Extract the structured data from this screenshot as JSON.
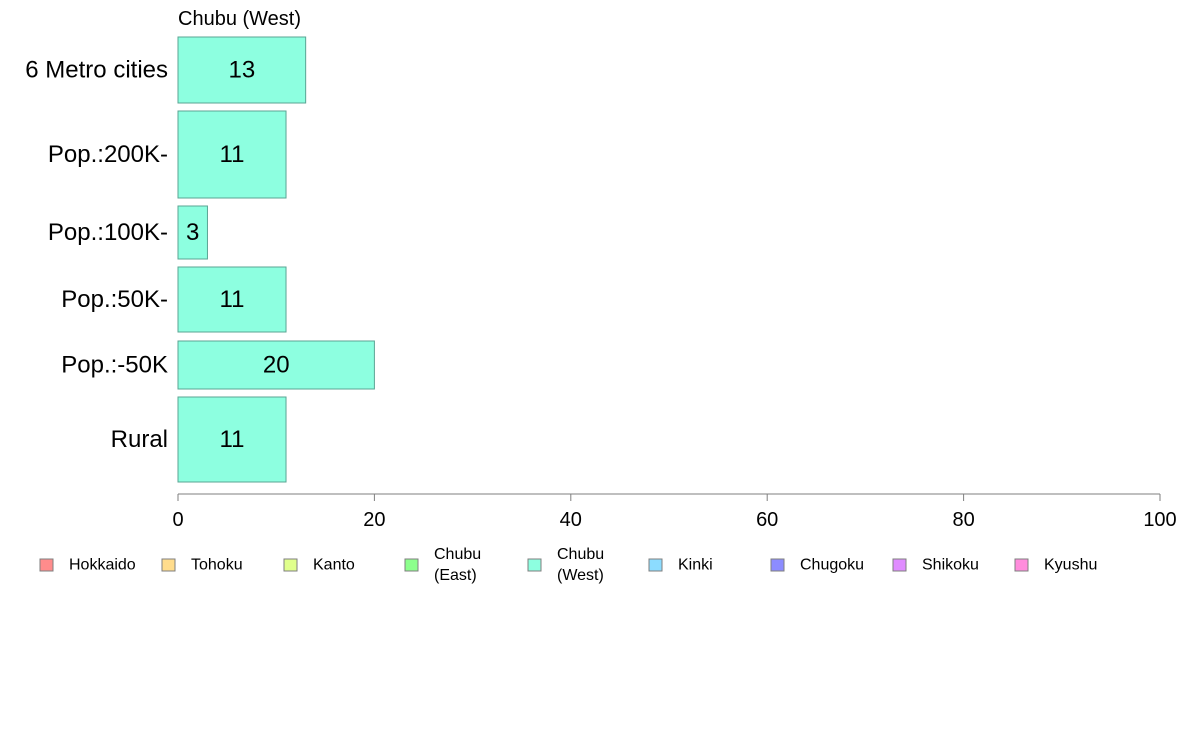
{
  "chart_data": {
    "type": "bar",
    "orientation": "horizontal",
    "title": "Chubu (West)",
    "categories": [
      "6 Metro cities",
      "Pop.:200K-",
      "Pop.:100K-",
      "Pop.:50K-",
      "Pop.:-50K",
      "Rural"
    ],
    "values": [
      13,
      11,
      3,
      11,
      20,
      11
    ],
    "value_labels": [
      "13",
      "11",
      "3",
      "11",
      "20",
      "11"
    ],
    "bar_color": "#8dffe0",
    "xlim": [
      0,
      100
    ],
    "xticks": [
      0,
      20,
      40,
      60,
      80,
      100
    ],
    "xtick_labels": [
      "0",
      "20",
      "40",
      "60",
      "80",
      "100"
    ],
    "grid": false,
    "legend_position": "bottom",
    "legend": [
      {
        "lines": [
          "Hokkaido"
        ],
        "color": "#ff8c8c"
      },
      {
        "lines": [
          "Tohoku"
        ],
        "color": "#ffdc8c"
      },
      {
        "lines": [
          "Kanto"
        ],
        "color": "#e0ff8c"
      },
      {
        "lines": [
          "Chubu",
          "(East)"
        ],
        "color": "#8cff8c"
      },
      {
        "lines": [
          "Chubu",
          "(West)"
        ],
        "color": "#8dffe0"
      },
      {
        "lines": [
          "Kinki"
        ],
        "color": "#8cdcff"
      },
      {
        "lines": [
          "Chugoku"
        ],
        "color": "#8c8cff"
      },
      {
        "lines": [
          "Shikoku"
        ],
        "color": "#e08cff"
      },
      {
        "lines": [
          "Kyushu"
        ],
        "color": "#ff8cdc"
      }
    ]
  }
}
